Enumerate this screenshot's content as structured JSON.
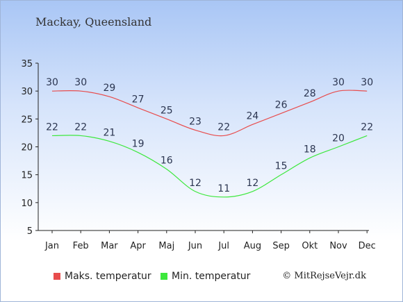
{
  "title": "Mackay, Queensland",
  "credit": "© MitRejseVejr.dk",
  "chart_data": {
    "type": "line",
    "categories": [
      "Jan",
      "Feb",
      "Mar",
      "Apr",
      "Maj",
      "Jun",
      "Jul",
      "Aug",
      "Sep",
      "Okt",
      "Nov",
      "Dec"
    ],
    "series": [
      {
        "name": "Maks. temperatur",
        "color": "#e84c4c",
        "values": [
          30,
          30,
          29,
          27,
          25,
          23,
          22,
          24,
          26,
          28,
          30,
          30
        ]
      },
      {
        "name": "Min. temperatur",
        "color": "#3de83d",
        "values": [
          22,
          22,
          21,
          19,
          16,
          12,
          11,
          12,
          15,
          18,
          20,
          22
        ]
      }
    ],
    "y_ticks": [
      5,
      10,
      15,
      20,
      25,
      30,
      35
    ],
    "ylim": [
      5,
      35
    ],
    "grid": false,
    "legend_position": "bottom-left"
  }
}
